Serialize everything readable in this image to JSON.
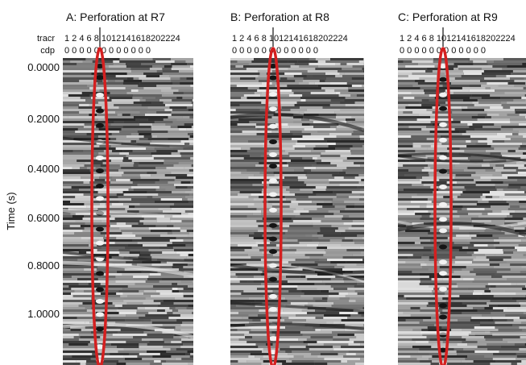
{
  "y_axis": {
    "label": "Time (s)",
    "ticks": [
      "0.0000",
      "0.2000",
      "0.4000",
      "0.6000",
      "0.8000",
      "1.0000"
    ]
  },
  "header_labels": {
    "tracr": "tracr",
    "cdp": "cdp"
  },
  "tracr_ticks": "1 2 4 6 8 1012141618202224",
  "cdp_ticks": "0 0 0 0 0 0 0 0 0 0 0 0",
  "panels": [
    {
      "title": "A: Perforation at R7",
      "seed": 7
    },
    {
      "title": "B: Perforation at R8",
      "seed": 13
    },
    {
      "title": "C: Perforation at R9",
      "seed": 29
    }
  ],
  "colors": {
    "highlight": "#d42020",
    "ink": "#111111"
  }
}
